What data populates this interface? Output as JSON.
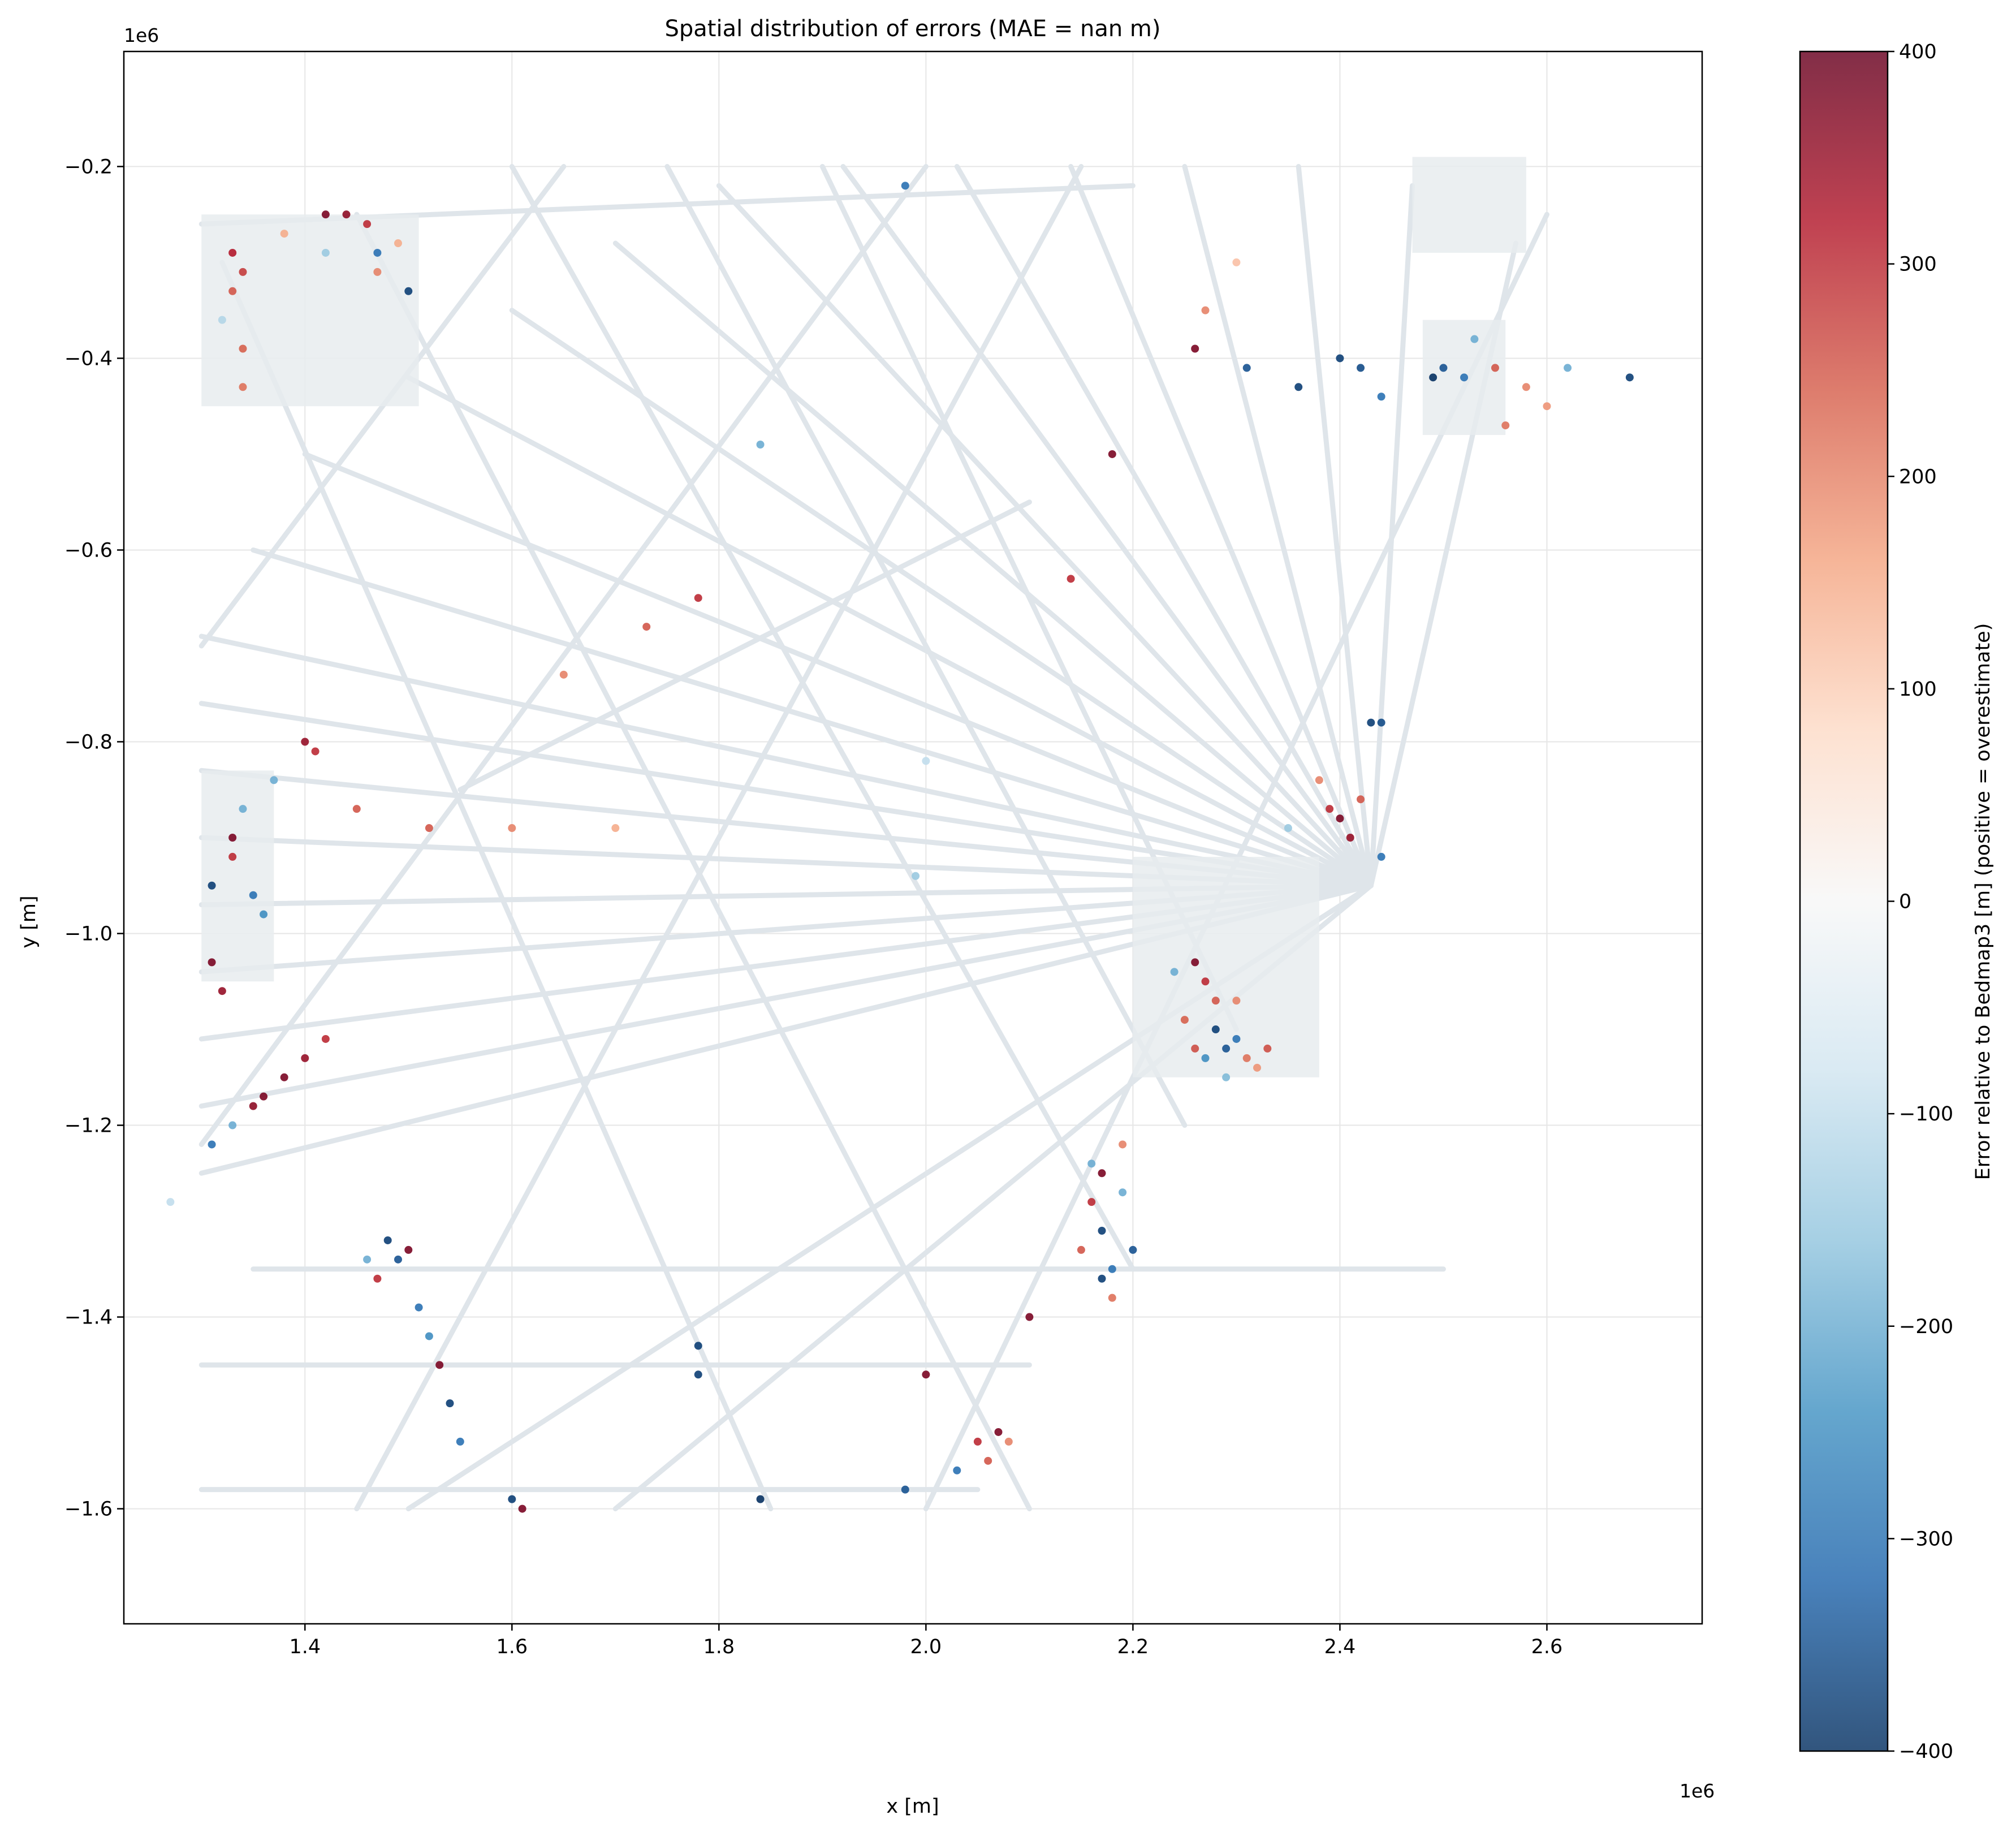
{
  "chart_data": {
    "type": "scatter",
    "title": "Spatial distribution of errors (MAE = nan m)",
    "xlabel": "x [m]",
    "ylabel": "y [m]",
    "x_offset_label": "1e6",
    "y_offset_label": "1e6",
    "xlim": [
      1.225,
      2.75
    ],
    "ylim": [
      -1.72,
      -0.08
    ],
    "xticks": [
      1.4,
      1.6,
      1.8,
      2.0,
      2.2,
      2.4,
      2.6
    ],
    "xtick_labels": [
      "1.4",
      "1.6",
      "1.8",
      "2.0",
      "2.2",
      "2.4",
      "2.6"
    ],
    "yticks": [
      -0.2,
      -0.4,
      -0.6,
      -0.8,
      -1.0,
      -1.2,
      -1.4,
      -1.6
    ],
    "ytick_labels": [
      "−0.2",
      "−0.4",
      "−0.6",
      "−0.8",
      "−1.0",
      "−1.2",
      "−1.4",
      "−1.6"
    ],
    "grid": true,
    "colorbar": {
      "label": "Error relative to Bedmap3 [m] (positive = overestimate)",
      "colormap": "RdBu_r",
      "range": [
        -400,
        400
      ],
      "ticks": [
        -400,
        -300,
        -200,
        -100,
        0,
        100,
        200,
        300,
        400
      ],
      "tick_labels": [
        "−400",
        "−300",
        "−200",
        "−100",
        "0",
        "100",
        "200",
        "300",
        "400"
      ],
      "stops": [
        "#053061",
        "#2166ac",
        "#4393c3",
        "#92c5de",
        "#d1e5f0",
        "#f7f7f7",
        "#fddbc7",
        "#f4a582",
        "#d6604d",
        "#b2182b",
        "#67001f"
      ]
    },
    "track_color": "#dfe5ea",
    "flight_lines": [
      {
        "from": [
          2.43,
          -0.95
        ],
        "to": [
          1.3,
          -0.76
        ]
      },
      {
        "from": [
          2.43,
          -0.95
        ],
        "to": [
          1.3,
          -0.83
        ]
      },
      {
        "from": [
          2.43,
          -0.95
        ],
        "to": [
          1.3,
          -0.9
        ]
      },
      {
        "from": [
          2.43,
          -0.95
        ],
        "to": [
          1.3,
          -0.97
        ]
      },
      {
        "from": [
          2.43,
          -0.95
        ],
        "to": [
          1.3,
          -1.04
        ]
      },
      {
        "from": [
          2.43,
          -0.95
        ],
        "to": [
          1.3,
          -1.11
        ]
      },
      {
        "from": [
          2.43,
          -0.95
        ],
        "to": [
          1.3,
          -1.18
        ]
      },
      {
        "from": [
          2.43,
          -0.95
        ],
        "to": [
          1.3,
          -0.69
        ]
      },
      {
        "from": [
          2.43,
          -0.95
        ],
        "to": [
          1.35,
          -0.6
        ]
      },
      {
        "from": [
          2.43,
          -0.95
        ],
        "to": [
          1.4,
          -0.5
        ]
      },
      {
        "from": [
          2.43,
          -0.95
        ],
        "to": [
          1.5,
          -0.42
        ]
      },
      {
        "from": [
          2.43,
          -0.95
        ],
        "to": [
          1.6,
          -0.35
        ]
      },
      {
        "from": [
          2.43,
          -0.95
        ],
        "to": [
          1.7,
          -0.28
        ]
      },
      {
        "from": [
          2.43,
          -0.95
        ],
        "to": [
          1.8,
          -0.22
        ]
      },
      {
        "from": [
          2.43,
          -0.95
        ],
        "to": [
          1.92,
          -0.2
        ]
      },
      {
        "from": [
          2.43,
          -0.95
        ],
        "to": [
          2.03,
          -0.2
        ]
      },
      {
        "from": [
          2.43,
          -0.95
        ],
        "to": [
          2.14,
          -0.2
        ]
      },
      {
        "from": [
          2.43,
          -0.95
        ],
        "to": [
          2.25,
          -0.2
        ]
      },
      {
        "from": [
          2.43,
          -0.95
        ],
        "to": [
          2.36,
          -0.2
        ]
      },
      {
        "from": [
          2.43,
          -0.95
        ],
        "to": [
          2.47,
          -0.22
        ]
      },
      {
        "from": [
          2.43,
          -0.95
        ],
        "to": [
          2.57,
          -0.28
        ]
      },
      {
        "from": [
          2.43,
          -0.95
        ],
        "to": [
          1.3,
          -1.25
        ]
      },
      {
        "from": [
          2.43,
          -0.95
        ],
        "to": [
          1.5,
          -1.6
        ]
      },
      {
        "from": [
          2.43,
          -0.95
        ],
        "to": [
          1.7,
          -1.6
        ]
      },
      {
        "from": [
          1.32,
          -0.3
        ],
        "to": [
          1.85,
          -1.6
        ]
      },
      {
        "from": [
          1.45,
          -0.25
        ],
        "to": [
          2.1,
          -1.6
        ]
      },
      {
        "from": [
          1.6,
          -0.2
        ],
        "to": [
          2.2,
          -1.35
        ]
      },
      {
        "from": [
          1.75,
          -0.2
        ],
        "to": [
          2.25,
          -1.2
        ]
      },
      {
        "from": [
          1.9,
          -0.2
        ],
        "to": [
          2.3,
          -1.1
        ]
      },
      {
        "from": [
          1.3,
          -1.22
        ],
        "to": [
          2.0,
          -0.2
        ]
      },
      {
        "from": [
          1.3,
          -0.7
        ],
        "to": [
          1.65,
          -0.2
        ]
      },
      {
        "from": [
          1.45,
          -1.6
        ],
        "to": [
          2.15,
          -0.2
        ]
      },
      {
        "from": [
          1.35,
          -1.35
        ],
        "to": [
          2.5,
          -1.35
        ]
      },
      {
        "from": [
          1.3,
          -1.45
        ],
        "to": [
          2.1,
          -1.45
        ]
      },
      {
        "from": [
          1.3,
          -1.58
        ],
        "to": [
          2.05,
          -1.58
        ]
      },
      {
        "from": [
          2.0,
          -1.6
        ],
        "to": [
          2.6,
          -0.25
        ]
      },
      {
        "from": [
          1.3,
          -0.26
        ],
        "to": [
          2.2,
          -0.22
        ]
      },
      {
        "from": [
          1.55,
          -0.85
        ],
        "to": [
          2.1,
          -0.55
        ]
      }
    ],
    "dense_regions": [
      {
        "x": [
          1.3,
          1.51
        ],
        "y": [
          -0.45,
          -0.25
        ]
      },
      {
        "x": [
          2.47,
          2.58
        ],
        "y": [
          -0.29,
          -0.19
        ]
      },
      {
        "x": [
          2.2,
          2.38
        ],
        "y": [
          -1.15,
          -0.92
        ]
      },
      {
        "x": [
          1.3,
          1.37
        ],
        "y": [
          -1.05,
          -0.83
        ]
      },
      {
        "x": [
          2.48,
          2.56
        ],
        "y": [
          -0.48,
          -0.36
        ]
      }
    ],
    "error_points": [
      {
        "x": 1.33,
        "y": -0.29,
        "v": 320
      },
      {
        "x": 1.34,
        "y": -0.31,
        "v": 280
      },
      {
        "x": 1.33,
        "y": -0.33,
        "v": 250
      },
      {
        "x": 1.34,
        "y": -0.39,
        "v": 240
      },
      {
        "x": 1.34,
        "y": -0.43,
        "v": 220
      },
      {
        "x": 1.32,
        "y": -0.36,
        "v": -120
      },
      {
        "x": 1.42,
        "y": -0.25,
        "v": 380
      },
      {
        "x": 1.44,
        "y": -0.25,
        "v": 360
      },
      {
        "x": 1.46,
        "y": -0.26,
        "v": 300
      },
      {
        "x": 1.47,
        "y": -0.29,
        "v": -300
      },
      {
        "x": 1.42,
        "y": -0.29,
        "v": -150
      },
      {
        "x": 1.5,
        "y": -0.33,
        "v": -380
      },
      {
        "x": 1.47,
        "y": -0.31,
        "v": 200
      },
      {
        "x": 1.38,
        "y": -0.27,
        "v": 150
      },
      {
        "x": 2.4,
        "y": -0.4,
        "v": -380
      },
      {
        "x": 2.42,
        "y": -0.41,
        "v": -360
      },
      {
        "x": 2.49,
        "y": -0.42,
        "v": -400
      },
      {
        "x": 2.5,
        "y": -0.41,
        "v": -350
      },
      {
        "x": 2.52,
        "y": -0.42,
        "v": -300
      },
      {
        "x": 2.36,
        "y": -0.43,
        "v": -380
      },
      {
        "x": 2.44,
        "y": -0.44,
        "v": -300
      },
      {
        "x": 2.55,
        "y": -0.41,
        "v": 250
      },
      {
        "x": 2.58,
        "y": -0.43,
        "v": 200
      },
      {
        "x": 2.6,
        "y": -0.45,
        "v": 180
      },
      {
        "x": 2.62,
        "y": -0.41,
        "v": -200
      },
      {
        "x": 2.68,
        "y": -0.42,
        "v": -380
      },
      {
        "x": 2.53,
        "y": -0.38,
        "v": -200
      },
      {
        "x": 2.56,
        "y": -0.47,
        "v": 220
      },
      {
        "x": 2.31,
        "y": -0.41,
        "v": -350
      },
      {
        "x": 2.27,
        "y": -0.35,
        "v": 200
      },
      {
        "x": 2.26,
        "y": -0.39,
        "v": 380
      },
      {
        "x": 2.3,
        "y": -0.3,
        "v": 120
      },
      {
        "x": 2.4,
        "y": -0.88,
        "v": 380
      },
      {
        "x": 2.41,
        "y": -0.9,
        "v": 350
      },
      {
        "x": 2.39,
        "y": -0.87,
        "v": 300
      },
      {
        "x": 2.42,
        "y": -0.86,
        "v": 250
      },
      {
        "x": 2.44,
        "y": -0.92,
        "v": -300
      },
      {
        "x": 2.35,
        "y": -0.89,
        "v": -150
      },
      {
        "x": 2.43,
        "y": -0.78,
        "v": -380
      },
      {
        "x": 2.44,
        "y": -0.78,
        "v": -360
      },
      {
        "x": 2.38,
        "y": -0.84,
        "v": 200
      },
      {
        "x": 2.26,
        "y": -1.03,
        "v": 380
      },
      {
        "x": 2.27,
        "y": -1.05,
        "v": 300
      },
      {
        "x": 2.28,
        "y": -1.07,
        "v": 250
      },
      {
        "x": 2.28,
        "y": -1.1,
        "v": -380
      },
      {
        "x": 2.29,
        "y": -1.12,
        "v": -350
      },
      {
        "x": 2.3,
        "y": -1.11,
        "v": -300
      },
      {
        "x": 2.31,
        "y": -1.13,
        "v": 220
      },
      {
        "x": 2.32,
        "y": -1.14,
        "v": 180
      },
      {
        "x": 2.25,
        "y": -1.09,
        "v": 240
      },
      {
        "x": 2.27,
        "y": -1.13,
        "v": -250
      },
      {
        "x": 2.33,
        "y": -1.12,
        "v": 260
      },
      {
        "x": 2.24,
        "y": -1.04,
        "v": -200
      },
      {
        "x": 2.3,
        "y": -1.07,
        "v": 200
      },
      {
        "x": 2.26,
        "y": -1.12,
        "v": 260
      },
      {
        "x": 2.29,
        "y": -1.15,
        "v": -180
      },
      {
        "x": 2.17,
        "y": -1.25,
        "v": 380
      },
      {
        "x": 2.16,
        "y": -1.28,
        "v": 300
      },
      {
        "x": 2.17,
        "y": -1.31,
        "v": -380
      },
      {
        "x": 2.18,
        "y": -1.35,
        "v": -300
      },
      {
        "x": 2.19,
        "y": -1.27,
        "v": -200
      },
      {
        "x": 2.18,
        "y": -1.38,
        "v": 220
      },
      {
        "x": 2.2,
        "y": -1.33,
        "v": -350
      },
      {
        "x": 2.15,
        "y": -1.33,
        "v": 250
      },
      {
        "x": 2.19,
        "y": -1.22,
        "v": 200
      },
      {
        "x": 2.17,
        "y": -1.36,
        "v": -380
      },
      {
        "x": 2.16,
        "y": -1.24,
        "v": -200
      },
      {
        "x": 1.31,
        "y": -0.95,
        "v": -380
      },
      {
        "x": 1.31,
        "y": -1.03,
        "v": 380
      },
      {
        "x": 1.32,
        "y": -1.06,
        "v": 350
      },
      {
        "x": 1.33,
        "y": -0.92,
        "v": 300
      },
      {
        "x": 1.35,
        "y": -0.96,
        "v": -300
      },
      {
        "x": 1.36,
        "y": -0.98,
        "v": -250
      },
      {
        "x": 1.34,
        "y": -0.87,
        "v": -200
      },
      {
        "x": 1.4,
        "y": -0.8,
        "v": 350
      },
      {
        "x": 1.41,
        "y": -0.81,
        "v": 300
      },
      {
        "x": 1.37,
        "y": -0.84,
        "v": -200
      },
      {
        "x": 1.33,
        "y": -0.9,
        "v": 380
      },
      {
        "x": 1.31,
        "y": -1.22,
        "v": -300
      },
      {
        "x": 1.33,
        "y": -1.2,
        "v": -200
      },
      {
        "x": 1.36,
        "y": -1.17,
        "v": 380
      },
      {
        "x": 1.38,
        "y": -1.15,
        "v": 380
      },
      {
        "x": 1.4,
        "y": -1.13,
        "v": 350
      },
      {
        "x": 1.42,
        "y": -1.11,
        "v": 300
      },
      {
        "x": 1.35,
        "y": -1.18,
        "v": 360
      },
      {
        "x": 1.48,
        "y": -1.32,
        "v": -380
      },
      {
        "x": 1.49,
        "y": -1.34,
        "v": -350
      },
      {
        "x": 1.5,
        "y": -1.33,
        "v": 380
      },
      {
        "x": 1.47,
        "y": -1.36,
        "v": 300
      },
      {
        "x": 1.51,
        "y": -1.39,
        "v": -300
      },
      {
        "x": 1.52,
        "y": -1.42,
        "v": -250
      },
      {
        "x": 1.53,
        "y": -1.45,
        "v": 380
      },
      {
        "x": 1.54,
        "y": -1.49,
        "v": -380
      },
      {
        "x": 1.55,
        "y": -1.53,
        "v": -300
      },
      {
        "x": 1.46,
        "y": -1.34,
        "v": -200
      },
      {
        "x": 1.6,
        "y": -1.59,
        "v": -380
      },
      {
        "x": 1.61,
        "y": -1.6,
        "v": 380
      },
      {
        "x": 1.78,
        "y": -1.43,
        "v": -380
      },
      {
        "x": 1.78,
        "y": -1.46,
        "v": -380
      },
      {
        "x": 1.84,
        "y": -1.59,
        "v": -400
      },
      {
        "x": 2.0,
        "y": -1.46,
        "v": 380
      },
      {
        "x": 2.05,
        "y": -1.53,
        "v": 300
      },
      {
        "x": 2.07,
        "y": -1.52,
        "v": 380
      },
      {
        "x": 2.06,
        "y": -1.55,
        "v": 250
      },
      {
        "x": 2.03,
        "y": -1.56,
        "v": -300
      },
      {
        "x": 1.98,
        "y": -1.58,
        "v": -350
      },
      {
        "x": 2.1,
        "y": -1.4,
        "v": 380
      },
      {
        "x": 2.08,
        "y": -1.53,
        "v": 200
      },
      {
        "x": 1.52,
        "y": -0.89,
        "v": 250
      },
      {
        "x": 1.6,
        "y": -0.89,
        "v": 200
      },
      {
        "x": 1.7,
        "y": -0.89,
        "v": 150
      },
      {
        "x": 1.78,
        "y": -0.65,
        "v": 300
      },
      {
        "x": 1.73,
        "y": -0.68,
        "v": 250
      },
      {
        "x": 1.65,
        "y": -0.73,
        "v": 200
      },
      {
        "x": 1.99,
        "y": -0.94,
        "v": -150
      },
      {
        "x": 2.0,
        "y": -0.82,
        "v": -100
      },
      {
        "x": 1.98,
        "y": -0.22,
        "v": -300
      },
      {
        "x": 2.18,
        "y": -0.5,
        "v": 380
      },
      {
        "x": 2.14,
        "y": -0.63,
        "v": 300
      },
      {
        "x": 1.84,
        "y": -0.49,
        "v": -200
      },
      {
        "x": 1.45,
        "y": -0.87,
        "v": 250
      },
      {
        "x": 1.49,
        "y": -0.28,
        "v": 150
      },
      {
        "x": 1.27,
        "y": -1.28,
        "v": -100
      }
    ]
  }
}
